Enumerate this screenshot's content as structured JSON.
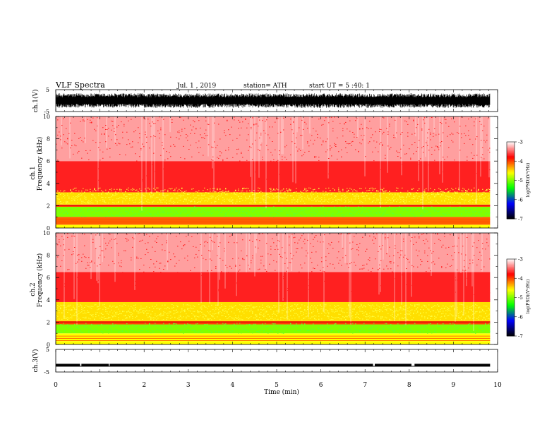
{
  "header": {
    "title": "VLF Spectra",
    "date": "Jul.  1  , 2019",
    "station": "station= ATH",
    "start_ut": "start  UT  =    5  :40: 1"
  },
  "axes": {
    "xlabel": "Time  (min)",
    "ch1_wave_label": "ch.1(V)",
    "ch3_wave_label": "ch.3(V)",
    "spec1_label_top": "ch.1",
    "spec1_label_bottom": "Frequency  (kHz)",
    "spec2_label_top": "ch.2",
    "spec2_label_bottom": "Frequency  (kHz)",
    "colorbar_label": "log(PSD)(V²/Hz)"
  },
  "colors": {
    "colormap": [
      "#000000",
      "#0000ff",
      "#00ff00",
      "#ffff00",
      "#ff0000",
      "#ffffff"
    ]
  },
  "chart_data": [
    {
      "type": "line",
      "name": "ch1-waveform",
      "ylabel": "ch.1(V)",
      "ylim": [
        -5,
        5
      ],
      "yticks": [
        "5",
        "-5"
      ],
      "xlim": [
        0,
        10
      ],
      "x_data_end": 9.83,
      "amplitude_v": 3,
      "color": "#000000"
    },
    {
      "type": "heatmap",
      "name": "ch1-spectrogram",
      "ylabel": "Frequency  (kHz)",
      "channel": "ch.1",
      "xlim": [
        0,
        10
      ],
      "x_data_end": 9.83,
      "ylim": [
        0,
        10
      ],
      "yticks": [
        "0",
        "2",
        "4",
        "6",
        "8",
        "10"
      ],
      "bands": [
        {
          "from_khz": 0,
          "to_khz": 0.3,
          "level": -4.6
        },
        {
          "from_khz": 0.3,
          "to_khz": 1.0,
          "level": -4.1
        },
        {
          "from_khz": 1.0,
          "to_khz": 1.9,
          "level": -5.0
        },
        {
          "from_khz": 1.9,
          "to_khz": 2.1,
          "level": -4.0
        },
        {
          "from_khz": 2.1,
          "to_khz": 3.2,
          "level": -4.5
        },
        {
          "from_khz": 3.2,
          "to_khz": 6.0,
          "level": -3.7
        },
        {
          "from_khz": 6.0,
          "to_khz": 10.0,
          "level": -3.3
        }
      ],
      "colorbar": {
        "label": "log(PSD)(V²/Hz)",
        "range": [
          -7,
          -3
        ],
        "ticks": [
          "-3",
          "-4",
          "-5",
          "-6",
          "-7"
        ]
      }
    },
    {
      "type": "heatmap",
      "name": "ch2-spectrogram",
      "ylabel": "Frequency  (kHz)",
      "channel": "ch.2",
      "xlim": [
        0,
        10
      ],
      "x_data_end": 9.83,
      "ylim": [
        0,
        10
      ],
      "yticks": [
        "0",
        "2",
        "4",
        "6",
        "8",
        "10"
      ],
      "bands": [
        {
          "from_khz": 0,
          "to_khz": 0.3,
          "level": -4.6
        },
        {
          "from_khz": 0.3,
          "to_khz": 1.0,
          "level": -4.6
        },
        {
          "from_khz": 1.0,
          "to_khz": 1.8,
          "level": -5.0
        },
        {
          "from_khz": 1.8,
          "to_khz": 2.1,
          "level": -4.0
        },
        {
          "from_khz": 2.1,
          "to_khz": 3.8,
          "level": -4.5
        },
        {
          "from_khz": 3.8,
          "to_khz": 6.5,
          "level": -3.7
        },
        {
          "from_khz": 6.5,
          "to_khz": 10.0,
          "level": -3.3
        }
      ],
      "colorbar": {
        "label": "log(PSD)(V²/Hz)",
        "range": [
          -7,
          -3
        ],
        "ticks": [
          "-3",
          "-4",
          "-5",
          "-6",
          "-7"
        ]
      }
    },
    {
      "type": "line",
      "name": "ch3-waveform",
      "ylabel": "ch.3(V)",
      "ylim": [
        -5,
        5
      ],
      "yticks": [
        "5",
        "-5"
      ],
      "xlim": [
        0,
        10
      ],
      "x_data_end": 9.83,
      "level_v": -2,
      "color": "#000000"
    },
    {
      "type": "axis",
      "name": "time-axis",
      "xlabel": "Time  (min)",
      "xlim": [
        0,
        10
      ],
      "xticks": [
        "0",
        "1",
        "2",
        "3",
        "4",
        "5",
        "6",
        "7",
        "8",
        "9",
        "10"
      ]
    }
  ]
}
